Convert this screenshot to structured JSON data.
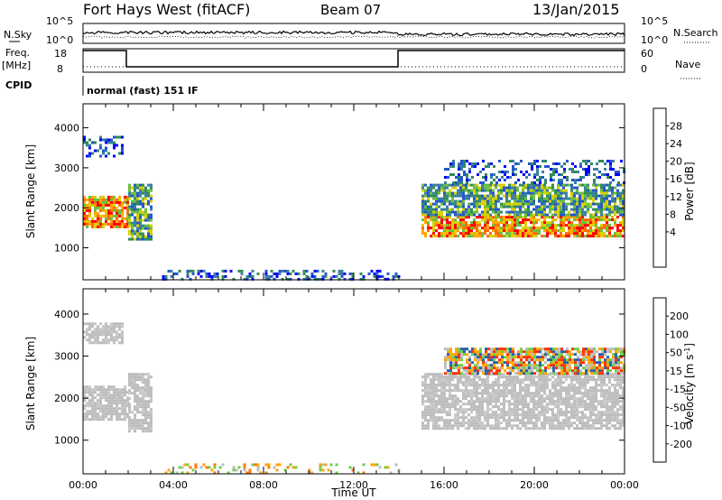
{
  "header": {
    "station": "Fort Hays West (fitACF)",
    "beam": "Beam 07",
    "date": "13/Jan/2015"
  },
  "strips": {
    "nsky_label": "N.Sky",
    "nsearch_label": "N.Search",
    "noise_ticks": [
      "10^5",
      "10^0"
    ],
    "freq_label": "Freq.",
    "freq_unit": "[MHz]",
    "freq_ticks": [
      "18",
      "8"
    ],
    "nave_label": "Nave",
    "nave_ticks": [
      "60",
      "0"
    ],
    "cpid_label": "CPID",
    "cpid_value": "normal (fast) 151 IF"
  },
  "chart_data": [
    {
      "type": "heatmap",
      "panel": "power",
      "ylabel": "Slant Range [km]",
      "yticks": [
        1000,
        2000,
        3000,
        4000
      ],
      "ylim": [
        200,
        4600
      ],
      "xlim": [
        0,
        24
      ],
      "colorbar": {
        "label": "Power [dB]",
        "ticks": [
          "28",
          "24",
          "20",
          "16",
          "12",
          "8",
          "4"
        ],
        "colors": [
          "#0000ff",
          "#2255cc",
          "#3a7fa0",
          "#2e8b57",
          "#6abf3a",
          "#d8d000",
          "#ffa500",
          "#ff6a00",
          "#ff0000"
        ]
      },
      "echo_regions": [
        {
          "t0": 0.0,
          "t1": 2.0,
          "r0": 1500,
          "r1": 2300,
          "level": "strong"
        },
        {
          "t0": 0.0,
          "t1": 1.8,
          "r0": 3300,
          "r1": 3800,
          "level": "weak"
        },
        {
          "t0": 2.0,
          "t1": 3.0,
          "r0": 1200,
          "r1": 2600,
          "level": "medium"
        },
        {
          "t0": 15.0,
          "t1": 24.0,
          "r0": 1300,
          "r1": 1800,
          "level": "strong"
        },
        {
          "t0": 15.0,
          "t1": 24.0,
          "r0": 1800,
          "r1": 2600,
          "level": "medium"
        },
        {
          "t0": 16.0,
          "t1": 24.0,
          "r0": 2600,
          "r1": 3200,
          "level": "weak"
        },
        {
          "t0": 3.5,
          "t1": 14.0,
          "r0": 200,
          "r1": 450,
          "level": "weak"
        }
      ]
    },
    {
      "type": "heatmap",
      "panel": "velocity",
      "ylabel": "Slant Range [km]",
      "yticks": [
        1000,
        2000,
        3000,
        4000
      ],
      "ylim": [
        200,
        4600
      ],
      "xlim": [
        0,
        24
      ],
      "xlabel": "Time UT",
      "xticks": [
        "00:00",
        "04:00",
        "08:00",
        "12:00",
        "16:00",
        "20:00",
        "00:00"
      ],
      "colorbar": {
        "label": "Velocity [m s",
        "label_sup": "-1",
        "label_end": "]",
        "ticks": [
          "200",
          "100",
          "50",
          "15",
          "-15",
          "-50",
          "-100",
          "-200"
        ],
        "colors": [
          "#1e2f9c",
          "#2a5fa8",
          "#2e8b57",
          "#6dd04a",
          "#bdbdbd",
          "#ffa500",
          "#ff7a00",
          "#ff3000",
          "#ff0000"
        ]
      },
      "echo_regions": [
        {
          "t0": 0.0,
          "t1": 2.0,
          "r0": 1500,
          "r1": 2300,
          "level": "ground"
        },
        {
          "t0": 0.0,
          "t1": 1.8,
          "r0": 3300,
          "r1": 3800,
          "level": "ground"
        },
        {
          "t0": 2.0,
          "t1": 3.0,
          "r0": 1200,
          "r1": 2600,
          "level": "ground"
        },
        {
          "t0": 15.0,
          "t1": 24.0,
          "r0": 1300,
          "r1": 2600,
          "level": "ground"
        },
        {
          "t0": 16.0,
          "t1": 24.0,
          "r0": 2600,
          "r1": 3200,
          "level": "mixed"
        },
        {
          "t0": 3.5,
          "t1": 14.0,
          "r0": 200,
          "r1": 450,
          "level": "negative"
        }
      ]
    }
  ]
}
